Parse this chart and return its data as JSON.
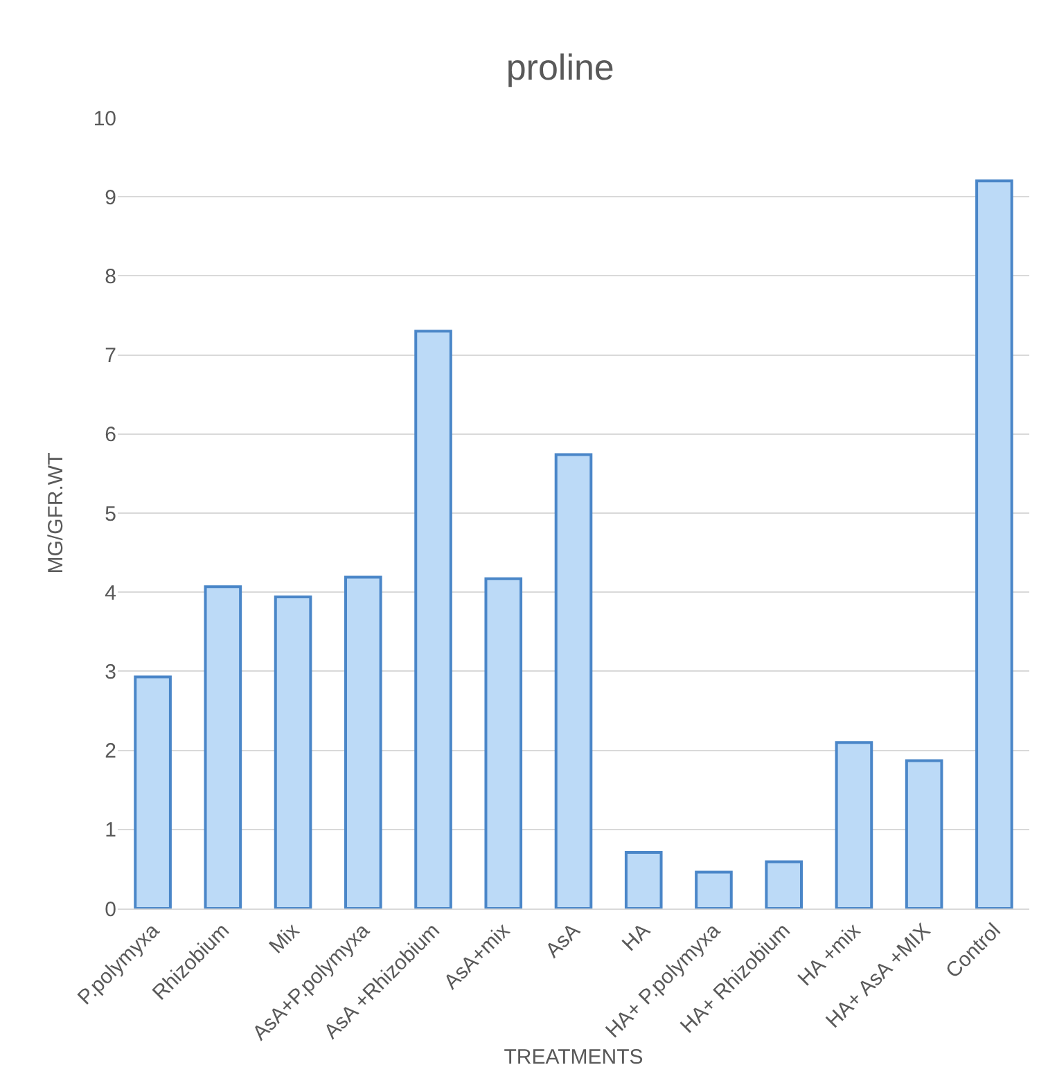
{
  "chart_data": {
    "type": "bar",
    "title": "proline",
    "xlabel": "TREATMENTS",
    "ylabel": "MG/GFR.WT",
    "categories": [
      "P.polymyxa",
      "Rhizobium",
      "Mix",
      "AsA+P.polymyxa",
      "AsA +Rhizobium",
      "AsA+mix",
      "AsA",
      "HA",
      "HA+ P.polymyxa",
      "HA+ Rhizobium",
      "HA +mix",
      "HA+ AsA +MIX",
      "Control"
    ],
    "values": [
      2.93,
      4.07,
      3.94,
      4.19,
      7.3,
      4.17,
      5.74,
      0.71,
      0.46,
      0.59,
      2.1,
      1.87,
      9.2
    ],
    "color": "#bcdaf7",
    "ylim": [
      0,
      10
    ],
    "yticks": [
      0,
      1,
      2,
      3,
      4,
      5,
      6,
      7,
      8,
      9,
      10
    ],
    "grid": "y",
    "legend": false
  }
}
